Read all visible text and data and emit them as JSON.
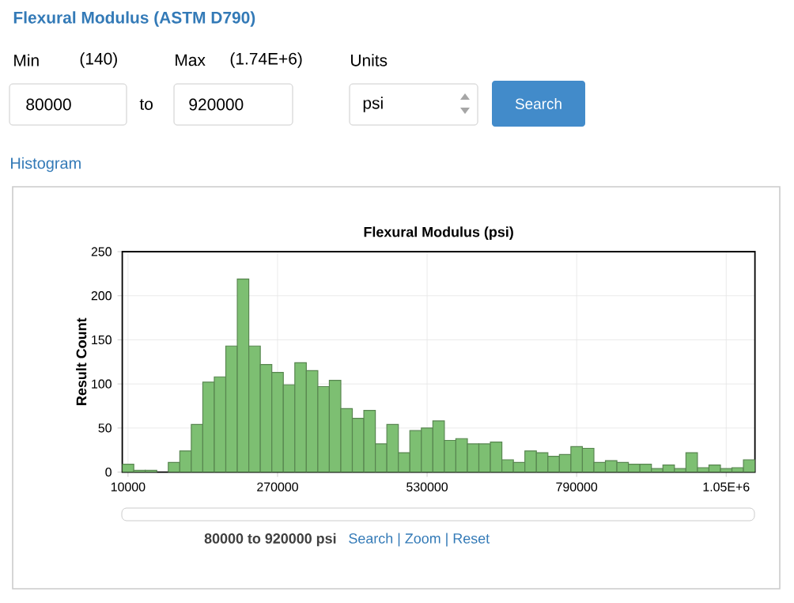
{
  "chart_data": {
    "type": "histogram",
    "title": "Flexural Modulus (psi)",
    "ylabel": "Result Count",
    "bins": [
      0,
      20000,
      40000,
      60000,
      80000,
      100000,
      120000,
      140000,
      160000,
      180000,
      200000,
      220000,
      240000,
      260000,
      280000,
      300000,
      320000,
      340000,
      360000,
      380000,
      400000,
      420000,
      440000,
      460000,
      480000,
      500000,
      520000,
      540000,
      560000,
      580000,
      600000,
      620000,
      640000,
      660000,
      680000,
      700000,
      720000,
      740000,
      760000,
      780000,
      800000,
      820000,
      840000,
      860000,
      880000,
      900000,
      920000,
      940000,
      960000,
      980000,
      1000000,
      1020000,
      1040000,
      1060000,
      1080000,
      1100000
    ],
    "values": [
      9,
      2,
      2,
      0,
      11,
      24,
      54,
      102,
      108,
      143,
      219,
      143,
      122,
      113,
      99,
      124,
      115,
      97,
      104,
      72,
      61,
      70,
      32,
      54,
      22,
      47,
      50,
      58,
      36,
      38,
      32,
      32,
      34,
      14,
      11,
      24,
      22,
      18,
      20,
      29,
      27,
      11,
      13,
      11,
      9,
      9,
      4,
      8,
      4,
      22,
      5,
      8,
      4,
      5,
      14
    ],
    "color": "#7dbf72",
    "xlim": [
      0,
      1100000
    ],
    "ylim": [
      0,
      250
    ],
    "xticks": [
      10000,
      270000,
      530000,
      790000,
      {
        "value": 1050000,
        "label": "1.05E+6"
      }
    ],
    "yticks": [
      0,
      50,
      100,
      150,
      200,
      250
    ],
    "grid": true,
    "annotations": [
      "Flexural Modulus (ASTM D790)",
      "Min",
      "(140)",
      "Max",
      "(1.74E+6)",
      "Units",
      "80000",
      "to",
      "920000",
      "psi",
      "Search",
      "Histogram",
      "80000 to 920000 psi",
      "Search | Zoom | Reset"
    ]
  }
}
